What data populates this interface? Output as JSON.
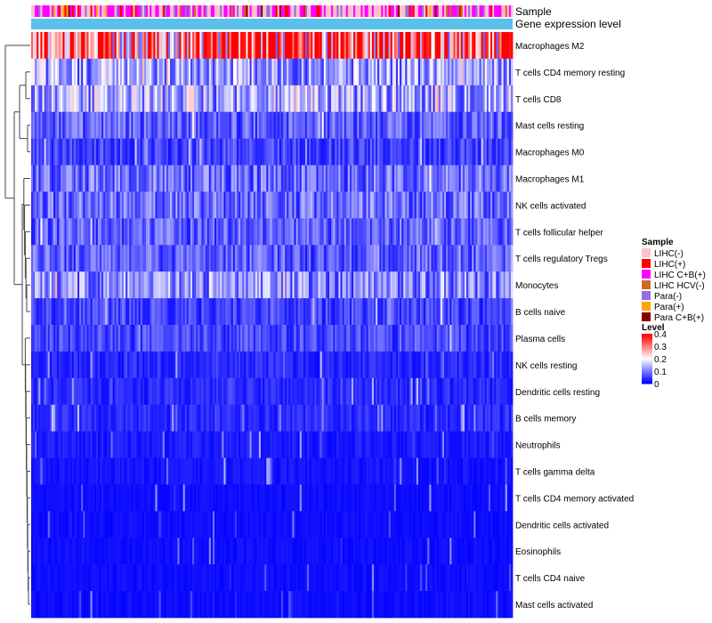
{
  "chart_data": {
    "type": "heatmap",
    "title": "",
    "annotation_rows": [
      "Sample",
      "Gene expression level"
    ],
    "rows": [
      {
        "name": "Macrophages M2",
        "mean": 0.3
      },
      {
        "name": "T cells CD4 memory resting",
        "mean": 0.12
      },
      {
        "name": "T cells CD8",
        "mean": 0.13
      },
      {
        "name": "Mast cells resting",
        "mean": 0.07
      },
      {
        "name": "Macrophages M0",
        "mean": 0.05
      },
      {
        "name": "Macrophages M1",
        "mean": 0.08
      },
      {
        "name": "NK cells activated",
        "mean": 0.08
      },
      {
        "name": "T cells follicular helper",
        "mean": 0.07
      },
      {
        "name": "T cells regulatory  Tregs",
        "mean": 0.07
      },
      {
        "name": "Monocytes",
        "mean": 0.1
      },
      {
        "name": "B cells naive",
        "mean": 0.05
      },
      {
        "name": "Plasma cells",
        "mean": 0.05
      },
      {
        "name": "NK cells resting",
        "mean": 0.03
      },
      {
        "name": "Dendritic cells resting",
        "mean": 0.03
      },
      {
        "name": "B cells memory",
        "mean": 0.03
      },
      {
        "name": "Neutrophils",
        "mean": 0.02
      },
      {
        "name": "T cells gamma delta",
        "mean": 0.015
      },
      {
        "name": "T cells CD4 memory activated",
        "mean": 0.01
      },
      {
        "name": "Dendritic cells activated",
        "mean": 0.01
      },
      {
        "name": "Eosinophils",
        "mean": 0.01
      },
      {
        "name": "T cells CD4 naive",
        "mean": 0.01
      },
      {
        "name": "Mast cells activated",
        "mean": 0.01
      }
    ],
    "legend_sample": {
      "title": "Sample",
      "items": [
        {
          "label": "LIHC(-)",
          "color": "#ffc0cb"
        },
        {
          "label": "LIHC(+)",
          "color": "#ff0000"
        },
        {
          "label": "LIHC C+B(+)",
          "color": "#ff00ff"
        },
        {
          "label": "LIHC HCV(-)",
          "color": "#d2691e"
        },
        {
          "label": "Para(-)",
          "color": "#9370db"
        },
        {
          "label": "Para(+)",
          "color": "#ffa500"
        },
        {
          "label": "Para C+B(+)",
          "color": "#8b0000"
        }
      ]
    },
    "legend_level": {
      "title": "Level",
      "ticks": [
        "0.4",
        "0.3",
        "0.2",
        "0.1",
        "0"
      ],
      "range": [
        0,
        0.4
      ],
      "colors": [
        "#0000ff",
        "#ffffff",
        "#ff0000"
      ]
    },
    "expression_bar_color": "#5bc0eb"
  }
}
